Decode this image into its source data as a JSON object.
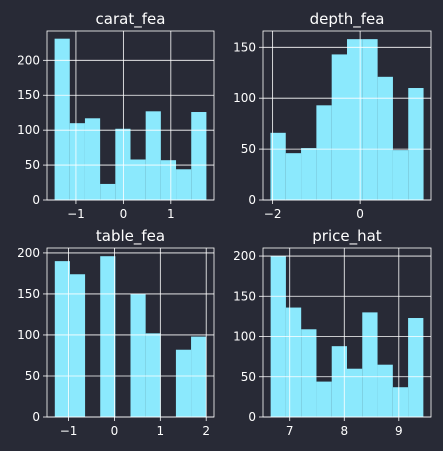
{
  "figure": {
    "background": "#282a36",
    "bar_color": "#8be9fd",
    "grid_color": "#ffffff",
    "axis_color": "#ffffff"
  },
  "chart_data": [
    {
      "type": "bar",
      "title": "carat_fea",
      "xlabel": "",
      "ylabel": "",
      "grid": true,
      "bin_edges": [
        -1.45,
        -1.13,
        -0.81,
        -0.49,
        -0.17,
        0.15,
        0.47,
        0.79,
        1.11,
        1.43,
        1.75
      ],
      "values": [
        231,
        110,
        117,
        23,
        102,
        58,
        127,
        57,
        44,
        126
      ],
      "xlim": [
        -1.61,
        1.91
      ],
      "ylim": [
        0,
        242
      ],
      "xticks": [
        -1,
        0,
        1
      ],
      "xtick_labels": [
        "−1",
        "0",
        "1"
      ],
      "yticks": [
        0,
        50,
        100,
        150,
        200
      ],
      "ytick_labels": [
        "0",
        "50",
        "100",
        "150",
        "200"
      ]
    },
    {
      "type": "bar",
      "title": "depth_fea",
      "xlabel": "",
      "ylabel": "",
      "grid": true,
      "bin_edges": [
        -2.05,
        -1.7,
        -1.35,
        -1.0,
        -0.65,
        -0.3,
        0.05,
        0.4,
        0.75,
        1.1,
        1.45
      ],
      "values": [
        66,
        46,
        51,
        93,
        143,
        158,
        158,
        121,
        49,
        110
      ],
      "xlim": [
        -2.22,
        1.62
      ],
      "ylim": [
        0,
        166
      ],
      "xticks": [
        -2,
        0
      ],
      "xtick_labels": [
        "−2",
        "0"
      ],
      "yticks": [
        0,
        50,
        100,
        150
      ],
      "ytick_labels": [
        "0",
        "50",
        "100",
        "150"
      ]
    },
    {
      "type": "bar",
      "title": "table_fea",
      "xlabel": "",
      "ylabel": "",
      "grid": true,
      "bin_edges": [
        -1.3,
        -0.97,
        -0.64,
        -0.31,
        0.02,
        0.35,
        0.68,
        1.01,
        1.34,
        1.67,
        2.0
      ],
      "values": [
        190,
        174,
        0,
        196,
        0,
        150,
        102,
        0,
        82,
        98
      ],
      "xlim": [
        -1.47,
        2.17
      ],
      "ylim": [
        0,
        206
      ],
      "xticks": [
        -1,
        0,
        1,
        2
      ],
      "xtick_labels": [
        "−1",
        "0",
        "1",
        "2"
      ],
      "yticks": [
        0,
        50,
        100,
        150,
        200
      ],
      "ytick_labels": [
        "0",
        "50",
        "100",
        "150",
        "200"
      ]
    },
    {
      "type": "bar",
      "title": "price_hat",
      "xlabel": "",
      "ylabel": "",
      "grid": true,
      "bin_edges": [
        6.65,
        6.93,
        7.21,
        7.49,
        7.77,
        8.05,
        8.33,
        8.61,
        8.89,
        9.17,
        9.45
      ],
      "values": [
        200,
        136,
        109,
        44,
        88,
        60,
        130,
        65,
        37,
        123
      ],
      "xlim": [
        6.51,
        9.59
      ],
      "ylim": [
        0,
        210
      ],
      "xticks": [
        7,
        8,
        9
      ],
      "xtick_labels": [
        "7",
        "8",
        "9"
      ],
      "yticks": [
        0,
        50,
        100,
        150,
        200
      ],
      "ytick_labels": [
        "0",
        "50",
        "100",
        "150",
        "200"
      ]
    }
  ]
}
